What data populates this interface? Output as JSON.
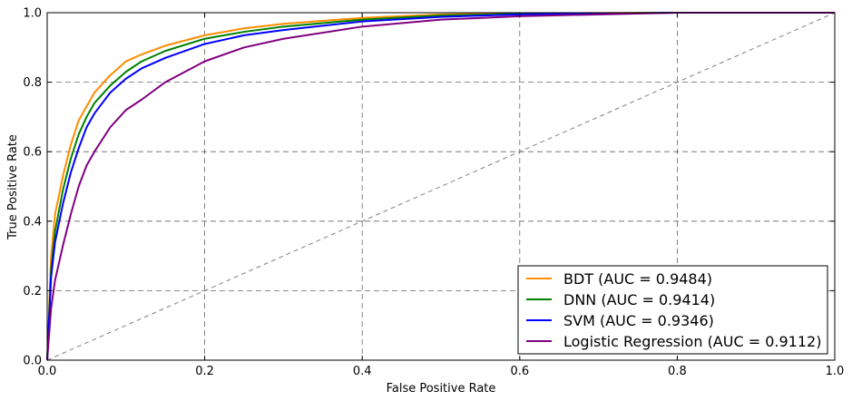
{
  "chart_data": {
    "type": "line",
    "xlabel": "False Positive Rate",
    "ylabel": "True Positive Rate",
    "xlim": [
      0.0,
      1.0
    ],
    "ylim": [
      0.0,
      1.0
    ],
    "x_ticks": [
      "0.0",
      "0.2",
      "0.4",
      "0.6",
      "0.8",
      "1.0"
    ],
    "y_ticks": [
      "0.0",
      "0.2",
      "0.4",
      "0.6",
      "0.8",
      "1.0"
    ],
    "grid": true,
    "legend_position": "lower-right",
    "reference_line": {
      "x": [
        0.0,
        1.0
      ],
      "y": [
        0.0,
        1.0
      ],
      "color": "#808080",
      "style": "dashed"
    },
    "series": [
      {
        "name": "BDT (AUC = 0.9484)",
        "color": "#ff8c00",
        "x": [
          0.0,
          0.005,
          0.01,
          0.02,
          0.03,
          0.04,
          0.05,
          0.06,
          0.08,
          0.1,
          0.12,
          0.15,
          0.2,
          0.25,
          0.3,
          0.4,
          0.5,
          0.6,
          0.8,
          1.0
        ],
        "y": [
          0.0,
          0.3,
          0.42,
          0.53,
          0.62,
          0.69,
          0.73,
          0.77,
          0.82,
          0.86,
          0.88,
          0.905,
          0.935,
          0.955,
          0.968,
          0.985,
          0.995,
          0.998,
          1.0,
          1.0
        ]
      },
      {
        "name": "DNN (AUC = 0.9414)",
        "color": "#008000",
        "x": [
          0.0,
          0.005,
          0.01,
          0.02,
          0.03,
          0.04,
          0.05,
          0.06,
          0.08,
          0.1,
          0.12,
          0.15,
          0.2,
          0.25,
          0.3,
          0.4,
          0.5,
          0.6,
          0.8,
          1.0
        ],
        "y": [
          0.0,
          0.26,
          0.37,
          0.49,
          0.58,
          0.65,
          0.7,
          0.74,
          0.79,
          0.83,
          0.86,
          0.89,
          0.925,
          0.945,
          0.96,
          0.98,
          0.992,
          0.997,
          1.0,
          1.0
        ]
      },
      {
        "name": "SVM (AUC = 0.9346)",
        "color": "#0000ff",
        "x": [
          0.0,
          0.005,
          0.01,
          0.02,
          0.03,
          0.04,
          0.05,
          0.06,
          0.08,
          0.1,
          0.12,
          0.15,
          0.2,
          0.25,
          0.3,
          0.4,
          0.5,
          0.6,
          0.8,
          1.0
        ],
        "y": [
          0.0,
          0.24,
          0.34,
          0.45,
          0.54,
          0.61,
          0.67,
          0.71,
          0.77,
          0.81,
          0.84,
          0.87,
          0.91,
          0.935,
          0.95,
          0.975,
          0.988,
          0.995,
          1.0,
          1.0
        ]
      },
      {
        "name": "Logistic Regression (AUC = 0.9112)",
        "color": "#800080",
        "x": [
          0.0,
          0.005,
          0.01,
          0.02,
          0.03,
          0.04,
          0.05,
          0.06,
          0.08,
          0.1,
          0.12,
          0.15,
          0.2,
          0.25,
          0.3,
          0.4,
          0.5,
          0.6,
          0.8,
          1.0
        ],
        "y": [
          0.0,
          0.15,
          0.23,
          0.33,
          0.42,
          0.5,
          0.56,
          0.6,
          0.67,
          0.72,
          0.75,
          0.8,
          0.86,
          0.9,
          0.925,
          0.96,
          0.98,
          0.99,
          1.0,
          1.0
        ]
      }
    ]
  }
}
